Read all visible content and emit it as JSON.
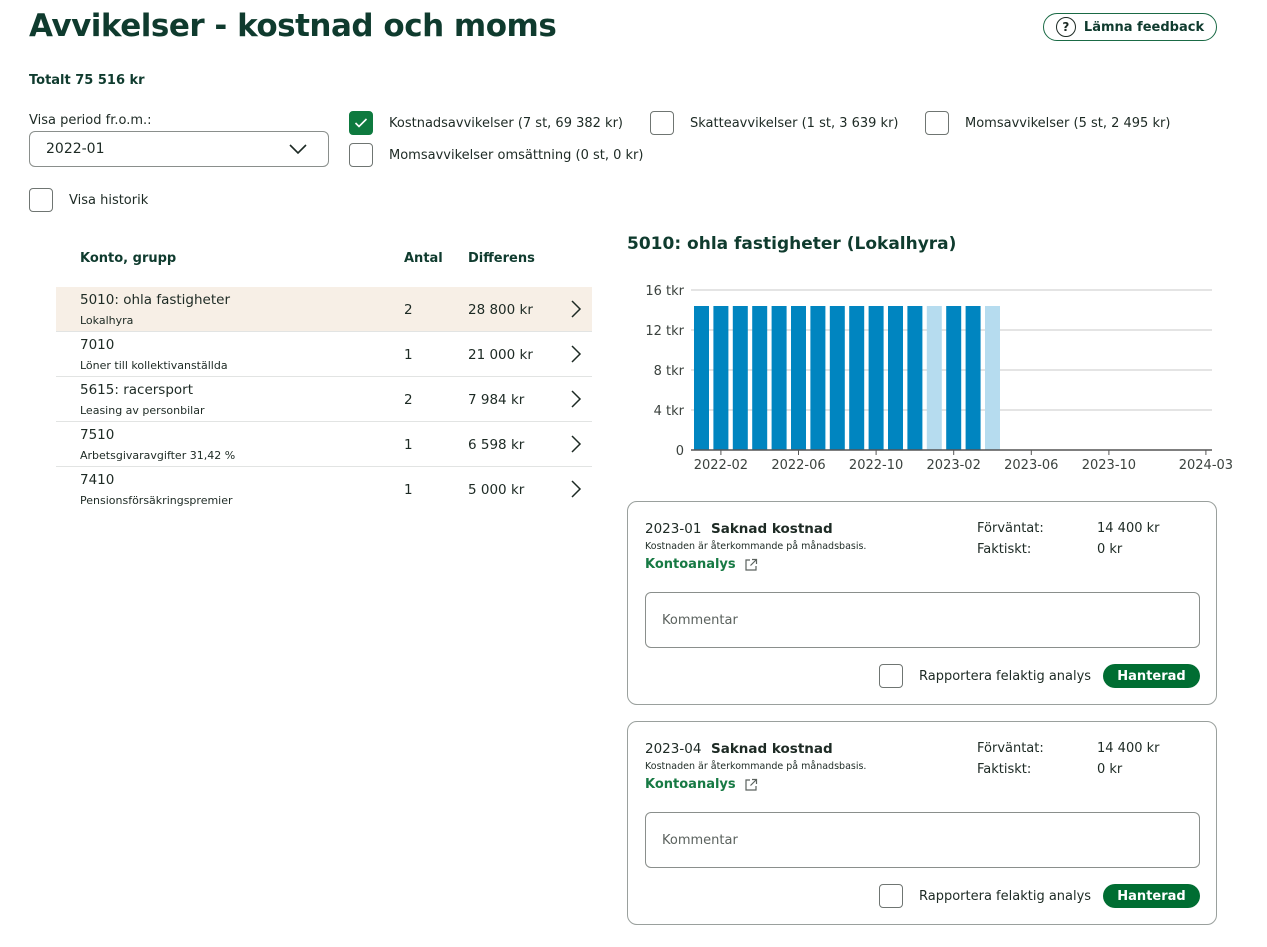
{
  "page": {
    "title": "Avvikelser - kostnad och moms",
    "feedback_label": "Lämna feedback",
    "total": "Totalt 75 516 kr"
  },
  "filters": {
    "period_label": "Visa period fr.o.m.:",
    "period_value": "2022-01",
    "checkboxes": [
      {
        "label": "Kostnadsavvikelser (7 st, 69 382 kr)",
        "checked": true
      },
      {
        "label": "Skatteavvikelser (1 st, 3 639 kr)",
        "checked": false
      },
      {
        "label": "Momsavvikelser (5 st, 2 495 kr)",
        "checked": false
      },
      {
        "label": "Momsavvikelser omsättning (0 st, 0 kr)",
        "checked": false
      }
    ],
    "history_label": "Visa historik",
    "history_checked": false
  },
  "table": {
    "headers": {
      "account": "Konto, grupp",
      "count": "Antal",
      "diff": "Differens"
    },
    "rows": [
      {
        "account": "5010: ohla fastigheter",
        "group": "Lokalhyra",
        "count": "2",
        "diff": "28 800 kr",
        "selected": true
      },
      {
        "account": "7010",
        "group": "Löner till kollektivanställda",
        "count": "1",
        "diff": "21 000 kr",
        "selected": false
      },
      {
        "account": "5615: racersport",
        "group": "Leasing av personbilar",
        "count": "2",
        "diff": "7 984 kr",
        "selected": false
      },
      {
        "account": "7510",
        "group": "Arbetsgivaravgifter 31,42 %",
        "count": "1",
        "diff": "6 598 kr",
        "selected": false
      },
      {
        "account": "7410",
        "group": "Pensionsförsäkringspremier",
        "count": "1",
        "diff": "5 000 kr",
        "selected": false
      }
    ]
  },
  "detail": {
    "title": "5010: ohla fastigheter (Lokalhyra)"
  },
  "chart_data": {
    "type": "bar",
    "title": "5010: ohla fastigheter (Lokalhyra)",
    "ylabel": "",
    "xlabel": "",
    "ylim": [
      0,
      16
    ],
    "y_ticks": [
      0,
      4,
      8,
      12,
      16
    ],
    "y_tick_labels": [
      "0",
      "4 tkr",
      "8 tkr",
      "12 tkr",
      "16 tkr"
    ],
    "x_tick_labels": [
      "2022-02",
      "2022-06",
      "2022-10",
      "2023-02",
      "2023-06",
      "2023-10",
      "2024-03"
    ],
    "x_tick_positions": [
      1,
      5,
      9,
      13,
      17,
      21,
      26
    ],
    "x_range": [
      0,
      27
    ],
    "grid": true,
    "colors": {
      "normal": "#0085c0",
      "deviation": "#b6dcef",
      "grid": "#c8c8c8",
      "axis": "#555555"
    },
    "categories": [
      "2022-01",
      "2022-02",
      "2022-03",
      "2022-04",
      "2022-05",
      "2022-06",
      "2022-07",
      "2022-08",
      "2022-09",
      "2022-10",
      "2022-11",
      "2022-12",
      "2023-01",
      "2023-02",
      "2023-03",
      "2023-04"
    ],
    "values": [
      14.4,
      14.4,
      14.4,
      14.4,
      14.4,
      14.4,
      14.4,
      14.4,
      14.4,
      14.4,
      14.4,
      14.4,
      14.4,
      14.4,
      14.4,
      14.4
    ],
    "deviation": [
      false,
      false,
      false,
      false,
      false,
      false,
      false,
      false,
      false,
      false,
      false,
      false,
      true,
      false,
      false,
      true
    ]
  },
  "cards": [
    {
      "date": "2023-01",
      "type": "Saknad kostnad",
      "description": "Kostnaden är återkommande på månadsbasis.",
      "link": "Kontoanalys",
      "expected_label": "Förväntat:",
      "expected_value": "14 400 kr",
      "actual_label": "Faktiskt:",
      "actual_value": "0 kr",
      "comment_placeholder": "Kommentar",
      "report_label": "Rapportera felaktig analys",
      "handled_label": "Hanterad"
    },
    {
      "date": "2023-04",
      "type": "Saknad kostnad",
      "description": "Kostnaden är återkommande på månadsbasis.",
      "link": "Kontoanalys",
      "expected_label": "Förväntat:",
      "expected_value": "14 400 kr",
      "actual_label": "Faktiskt:",
      "actual_value": "0 kr",
      "comment_placeholder": "Kommentar",
      "report_label": "Rapportera felaktig analys",
      "handled_label": "Hanterad"
    }
  ]
}
